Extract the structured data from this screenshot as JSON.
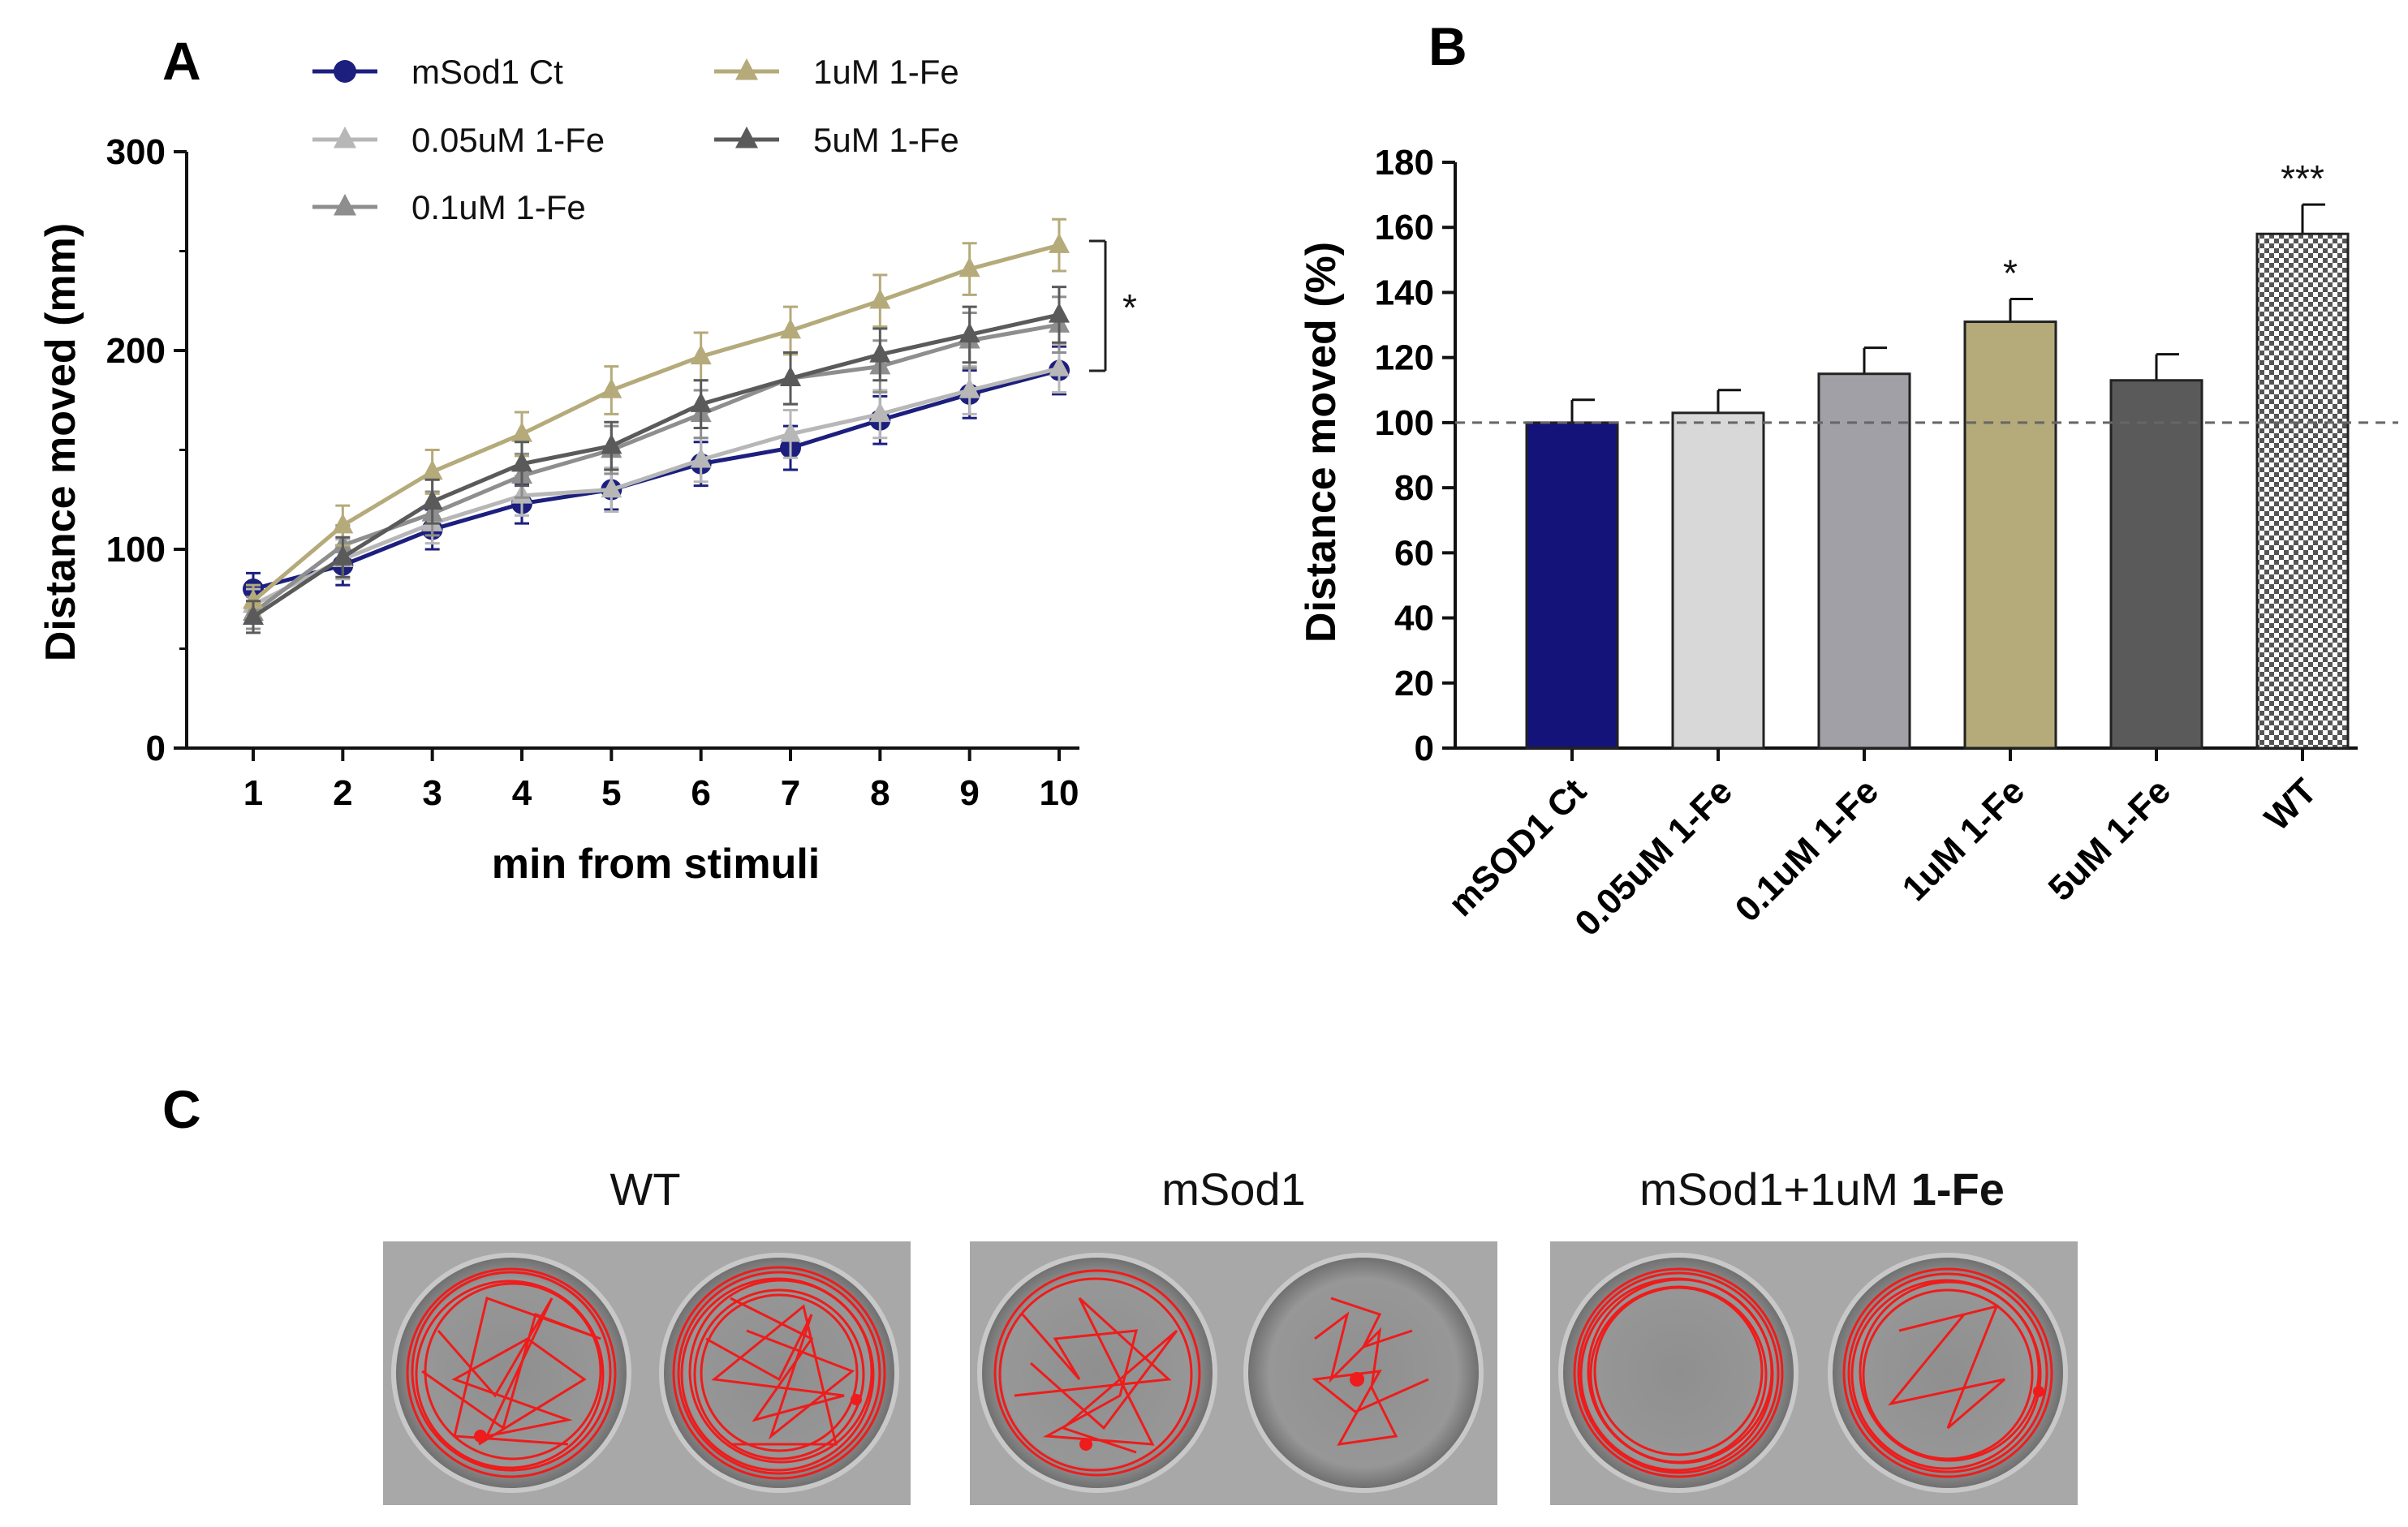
{
  "chart_data": [
    {
      "panel": "A",
      "type": "line",
      "xlabel": "min from stimuli",
      "ylabel": "Distance moved (mm)",
      "x": [
        1,
        2,
        3,
        4,
        5,
        6,
        7,
        8,
        9,
        10
      ],
      "ylim": [
        0,
        300
      ],
      "yticks": [
        0,
        100,
        200,
        300
      ],
      "grid": false,
      "legend_position": "top",
      "series": [
        {
          "name": "mSod1 Ct",
          "color": "#1c1f7e",
          "marker": "circle",
          "values": [
            80,
            92,
            110,
            123,
            130,
            143,
            151,
            165,
            178,
            190
          ],
          "errors": [
            8,
            10,
            10,
            10,
            10,
            11,
            11,
            12,
            12,
            12
          ]
        },
        {
          "name": "0.05uM 1-Fe",
          "color": "#b7b7b7",
          "marker": "triangle",
          "values": [
            72,
            95,
            113,
            127,
            130,
            145,
            158,
            168,
            180,
            191
          ],
          "errors": [
            8,
            10,
            10,
            10,
            11,
            11,
            12,
            12,
            12,
            12
          ]
        },
        {
          "name": "0.1uM 1-Fe",
          "color": "#8e8e8e",
          "marker": "triangle",
          "values": [
            68,
            102,
            118,
            137,
            150,
            168,
            186,
            192,
            205,
            213
          ],
          "errors": [
            8,
            10,
            11,
            11,
            12,
            12,
            13,
            13,
            14,
            14
          ]
        },
        {
          "name": "1uM 1-Fe",
          "color": "#b5aa7a",
          "marker": "triangle",
          "values": [
            74,
            112,
            139,
            158,
            180,
            197,
            210,
            225,
            241,
            253
          ],
          "errors": [
            8,
            10,
            11,
            11,
            12,
            12,
            12,
            13,
            13,
            13
          ]
        },
        {
          "name": "5uM 1-Fe",
          "color": "#5a5a5a",
          "marker": "triangle",
          "values": [
            66,
            96,
            124,
            143,
            152,
            173,
            186,
            198,
            208,
            218
          ],
          "errors": [
            8,
            10,
            11,
            11,
            12,
            12,
            13,
            13,
            14,
            14
          ]
        }
      ],
      "annotation": "*"
    },
    {
      "panel": "B",
      "type": "bar",
      "xlabel": "",
      "ylabel": "Distance moved (%)",
      "ylim": [
        0,
        180
      ],
      "yticks": [
        0,
        20,
        40,
        60,
        80,
        100,
        120,
        140,
        160,
        180
      ],
      "reference_line": 100,
      "grid": false,
      "categories": [
        "mSOD1 Ct",
        "0.05uM 1-Fe",
        "0.1uM 1-Fe",
        "1uM 1-Fe",
        "5uM 1-Fe",
        "WT"
      ],
      "values": [
        100,
        103,
        115,
        131,
        113,
        158
      ],
      "errors": [
        7,
        7,
        8,
        7,
        8,
        9
      ],
      "colors": [
        "#13137a",
        "#d8d8d8",
        "#a0a0a6",
        "#b5aa7a",
        "#5a5a5a",
        "checker"
      ],
      "significance": [
        "",
        "",
        "",
        "*",
        "",
        "***"
      ]
    }
  ],
  "panel_letters": {
    "a": "A",
    "b": "B",
    "c": "C"
  },
  "panel_c": {
    "titles": [
      {
        "text": "WT"
      },
      {
        "text": "mSod1"
      },
      {
        "text_plain": "mSod1+1uM ",
        "text_bold": "1-Fe"
      }
    ]
  }
}
